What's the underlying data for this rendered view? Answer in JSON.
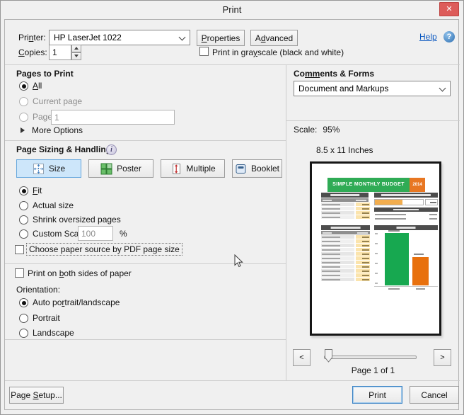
{
  "window": {
    "title": "Print"
  },
  "icons": {
    "close": "✕",
    "help": "?",
    "info": "i",
    "prev": "<",
    "next": ">"
  },
  "colors": {
    "selected_tool_bg": "#cde6fa",
    "close_button_red": "#dd5c5a",
    "help_link_blue": "#0a58c0",
    "doc_green": "#2fab55",
    "doc_orange": "#e87722",
    "chart_green": "#17a850",
    "chart_orange": "#e8700d"
  },
  "printer_section": {
    "printer_label": [
      "Pri",
      "n",
      "ter:"
    ],
    "printer_value": "HP LaserJet 1022",
    "properties_button": [
      "",
      "P",
      "roperties"
    ],
    "advanced_button": [
      "A",
      "d",
      "vanced"
    ],
    "help_link": "Help",
    "copies_label": [
      "",
      "C",
      "opies:"
    ],
    "copies_value": "1",
    "grayscale_label": [
      "Print in gra",
      "y",
      "scale (black and white)"
    ]
  },
  "pages_to_print": {
    "heading": "Pages to Print",
    "all_label": [
      "",
      "A",
      "ll"
    ],
    "current_page_label": "Current page",
    "pages_label": "Pages",
    "pages_value": "1",
    "more_options_label": "More Options"
  },
  "page_sizing": {
    "heading": "Page Sizing & Handling",
    "size_button": "Size",
    "poster_button": "Poster",
    "multiple_button": "Multiple",
    "booklet_button": "Booklet",
    "fit_label": [
      "",
      "F",
      "it"
    ],
    "actual_size_label": "Actual size",
    "shrink_label": "Shrink oversized pages",
    "custom_scale_label": "Custom Scale:",
    "custom_scale_value": "100",
    "percent_sign": "%",
    "choose_paper_source_label": "Choose paper source by PDF page size"
  },
  "duplex_label": [
    "Print on ",
    "b",
    "oth sides of paper"
  ],
  "orientation": {
    "heading": "Orientation:",
    "auto_label": [
      "Auto po",
      "r",
      "trait/landscape"
    ],
    "portrait_label": "Portrait",
    "landscape_label": "Landscape"
  },
  "comments_forms": {
    "heading": [
      "Co",
      "mm",
      "ents & Forms"
    ],
    "value": "Document and Markups"
  },
  "preview": {
    "scale_label": "Scale:",
    "scale_value": "95%",
    "paper_size": "8.5 x 11 Inches",
    "page_info": "Page 1 of 1",
    "doc": {
      "title": "SIMPLE MONTHLY BUDGET",
      "year": "2014",
      "income_row_count": 4,
      "expense_row_count": 11
    }
  },
  "footer": {
    "page_setup_button": [
      "Page ",
      "S",
      "etup..."
    ],
    "print_button": "Print",
    "cancel_button": "Cancel"
  }
}
